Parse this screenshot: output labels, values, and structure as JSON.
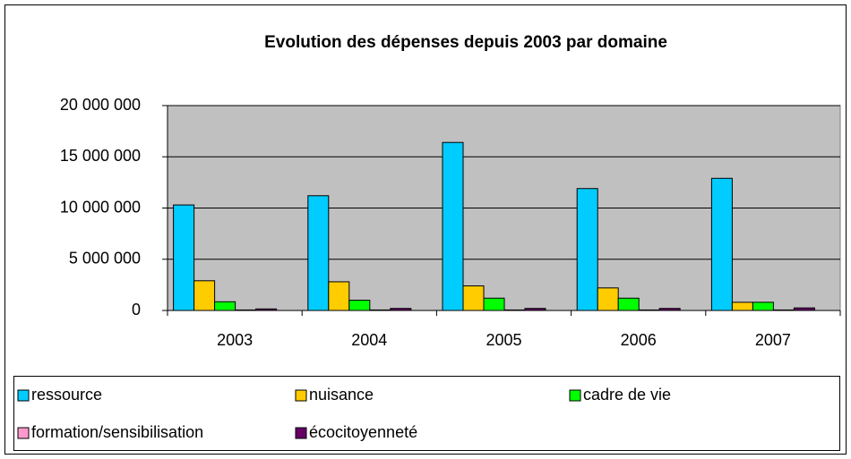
{
  "chart_data": {
    "type": "bar",
    "title": "Evolution des dépenses depuis 2003 par domaine",
    "categories": [
      "2003",
      "2004",
      "2005",
      "2006",
      "2007"
    ],
    "series": [
      {
        "name": "ressource",
        "color": "#00ccff",
        "values": [
          10300000,
          11200000,
          16400000,
          11900000,
          12900000
        ]
      },
      {
        "name": "nuisance",
        "color": "#ffcc00",
        "values": [
          2900000,
          2800000,
          2400000,
          2200000,
          800000
        ]
      },
      {
        "name": "cadre de vie",
        "color": "#00ff00",
        "values": [
          850000,
          1000000,
          1200000,
          1200000,
          800000
        ]
      },
      {
        "name": "formation/sensibilisation",
        "color": "#ff99cc",
        "values": [
          50000,
          50000,
          50000,
          50000,
          50000
        ]
      },
      {
        "name": "écocitoyenneté",
        "color": "#660066",
        "values": [
          150000,
          200000,
          200000,
          200000,
          250000
        ]
      }
    ],
    "ylim": [
      0,
      20000000
    ],
    "yticks": [
      0,
      {
        "value": 5000000,
        "label": "5 000 000"
      },
      {
        "value": 10000000,
        "label": "10 000 000"
      },
      {
        "value": 15000000,
        "label": "15 000 000"
      },
      {
        "value": 20000000,
        "label": "20 000 000"
      }
    ],
    "grid": true,
    "legend": "bottom"
  }
}
